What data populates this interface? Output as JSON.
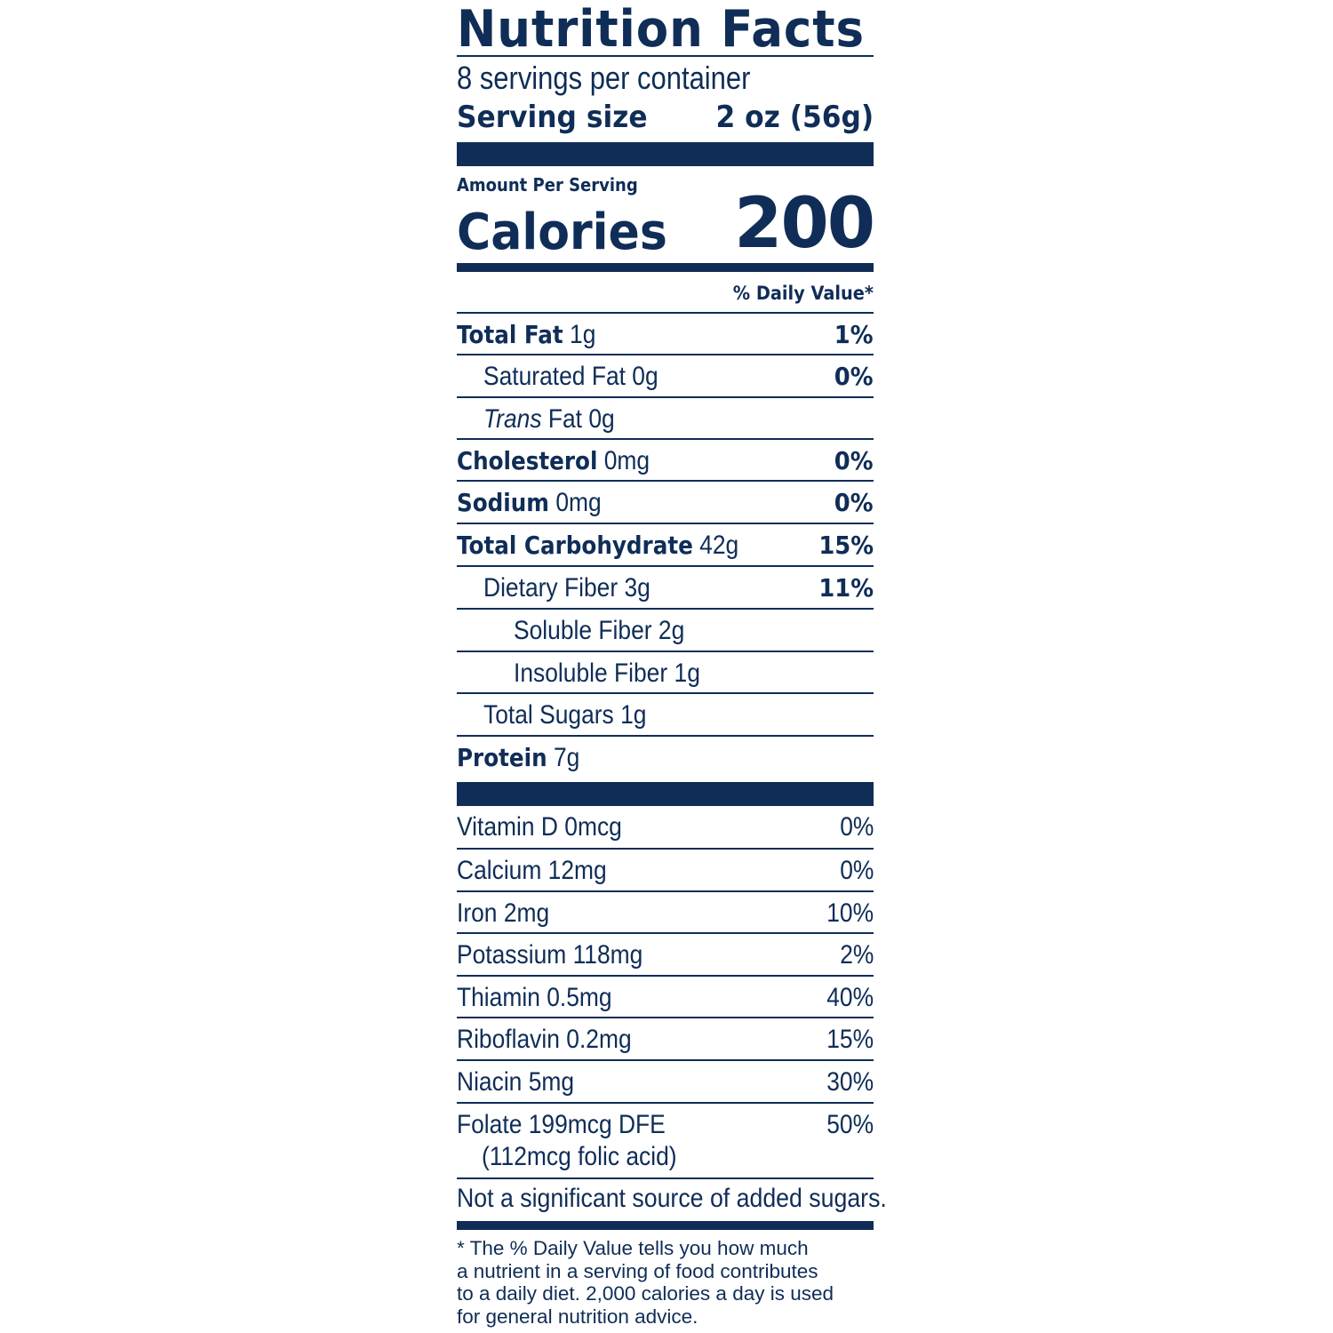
{
  "label": {
    "title": "Nutrition Facts",
    "servings_per_container": "8 servings per container",
    "serving_size_label": "Serving size",
    "serving_size_value": "2 oz (56g)",
    "amount_per_serving": "Amount Per Serving",
    "calories_label": "Calories",
    "calories_value": "200",
    "daily_value_header": "% Daily Value*",
    "nutrients": [
      {
        "name": "Total Fat",
        "amount": "1g",
        "dv": "1%"
      },
      {
        "name": "Saturated Fat",
        "amount": "0g",
        "dv": "0%"
      },
      {
        "name": "Trans",
        "name_rest": "Fat",
        "amount": "0g",
        "dv": ""
      },
      {
        "name": "Cholesterol",
        "amount": "0mg",
        "dv": "0%"
      },
      {
        "name": "Sodium",
        "amount": "0mg",
        "dv": "0%"
      },
      {
        "name": "Total Carbohydrate",
        "amount": "42g",
        "dv": "15%"
      },
      {
        "name": "Dietary Fiber",
        "amount": "3g",
        "dv": "11%"
      },
      {
        "name": "Soluble Fiber",
        "amount": "2g",
        "dv": ""
      },
      {
        "name": "Insoluble Fiber",
        "amount": "1g",
        "dv": ""
      },
      {
        "name": "Total Sugars",
        "amount": "1g",
        "dv": ""
      },
      {
        "name": "Protein",
        "amount": "7g",
        "dv": ""
      }
    ],
    "vitamins": [
      {
        "text": "Vitamin D 0mcg",
        "dv": "0%"
      },
      {
        "text": "Calcium 12mg",
        "dv": "0%"
      },
      {
        "text": "Iron 2mg",
        "dv": "10%"
      },
      {
        "text": "Potassium 118mg",
        "dv": "2%"
      },
      {
        "text": "Thiamin 0.5mg",
        "dv": "40%"
      },
      {
        "text": "Riboflavin 0.2mg",
        "dv": "15%"
      },
      {
        "text": "Niacin 5mg",
        "dv": "30%"
      },
      {
        "text": "Folate 199mcg DFE",
        "sub": "(112mcg folic acid)",
        "dv": "50%"
      }
    ],
    "added_sugars_note": "Not a significant source of added sugars.",
    "footnote_lines": [
      "* The % Daily Value tells you how much",
      "a nutrient in a serving of food contributes",
      "to a daily diet. 2,000 calories a day is used",
      "for general nutrition advice."
    ],
    "ink_color": "#0f2d57"
  }
}
